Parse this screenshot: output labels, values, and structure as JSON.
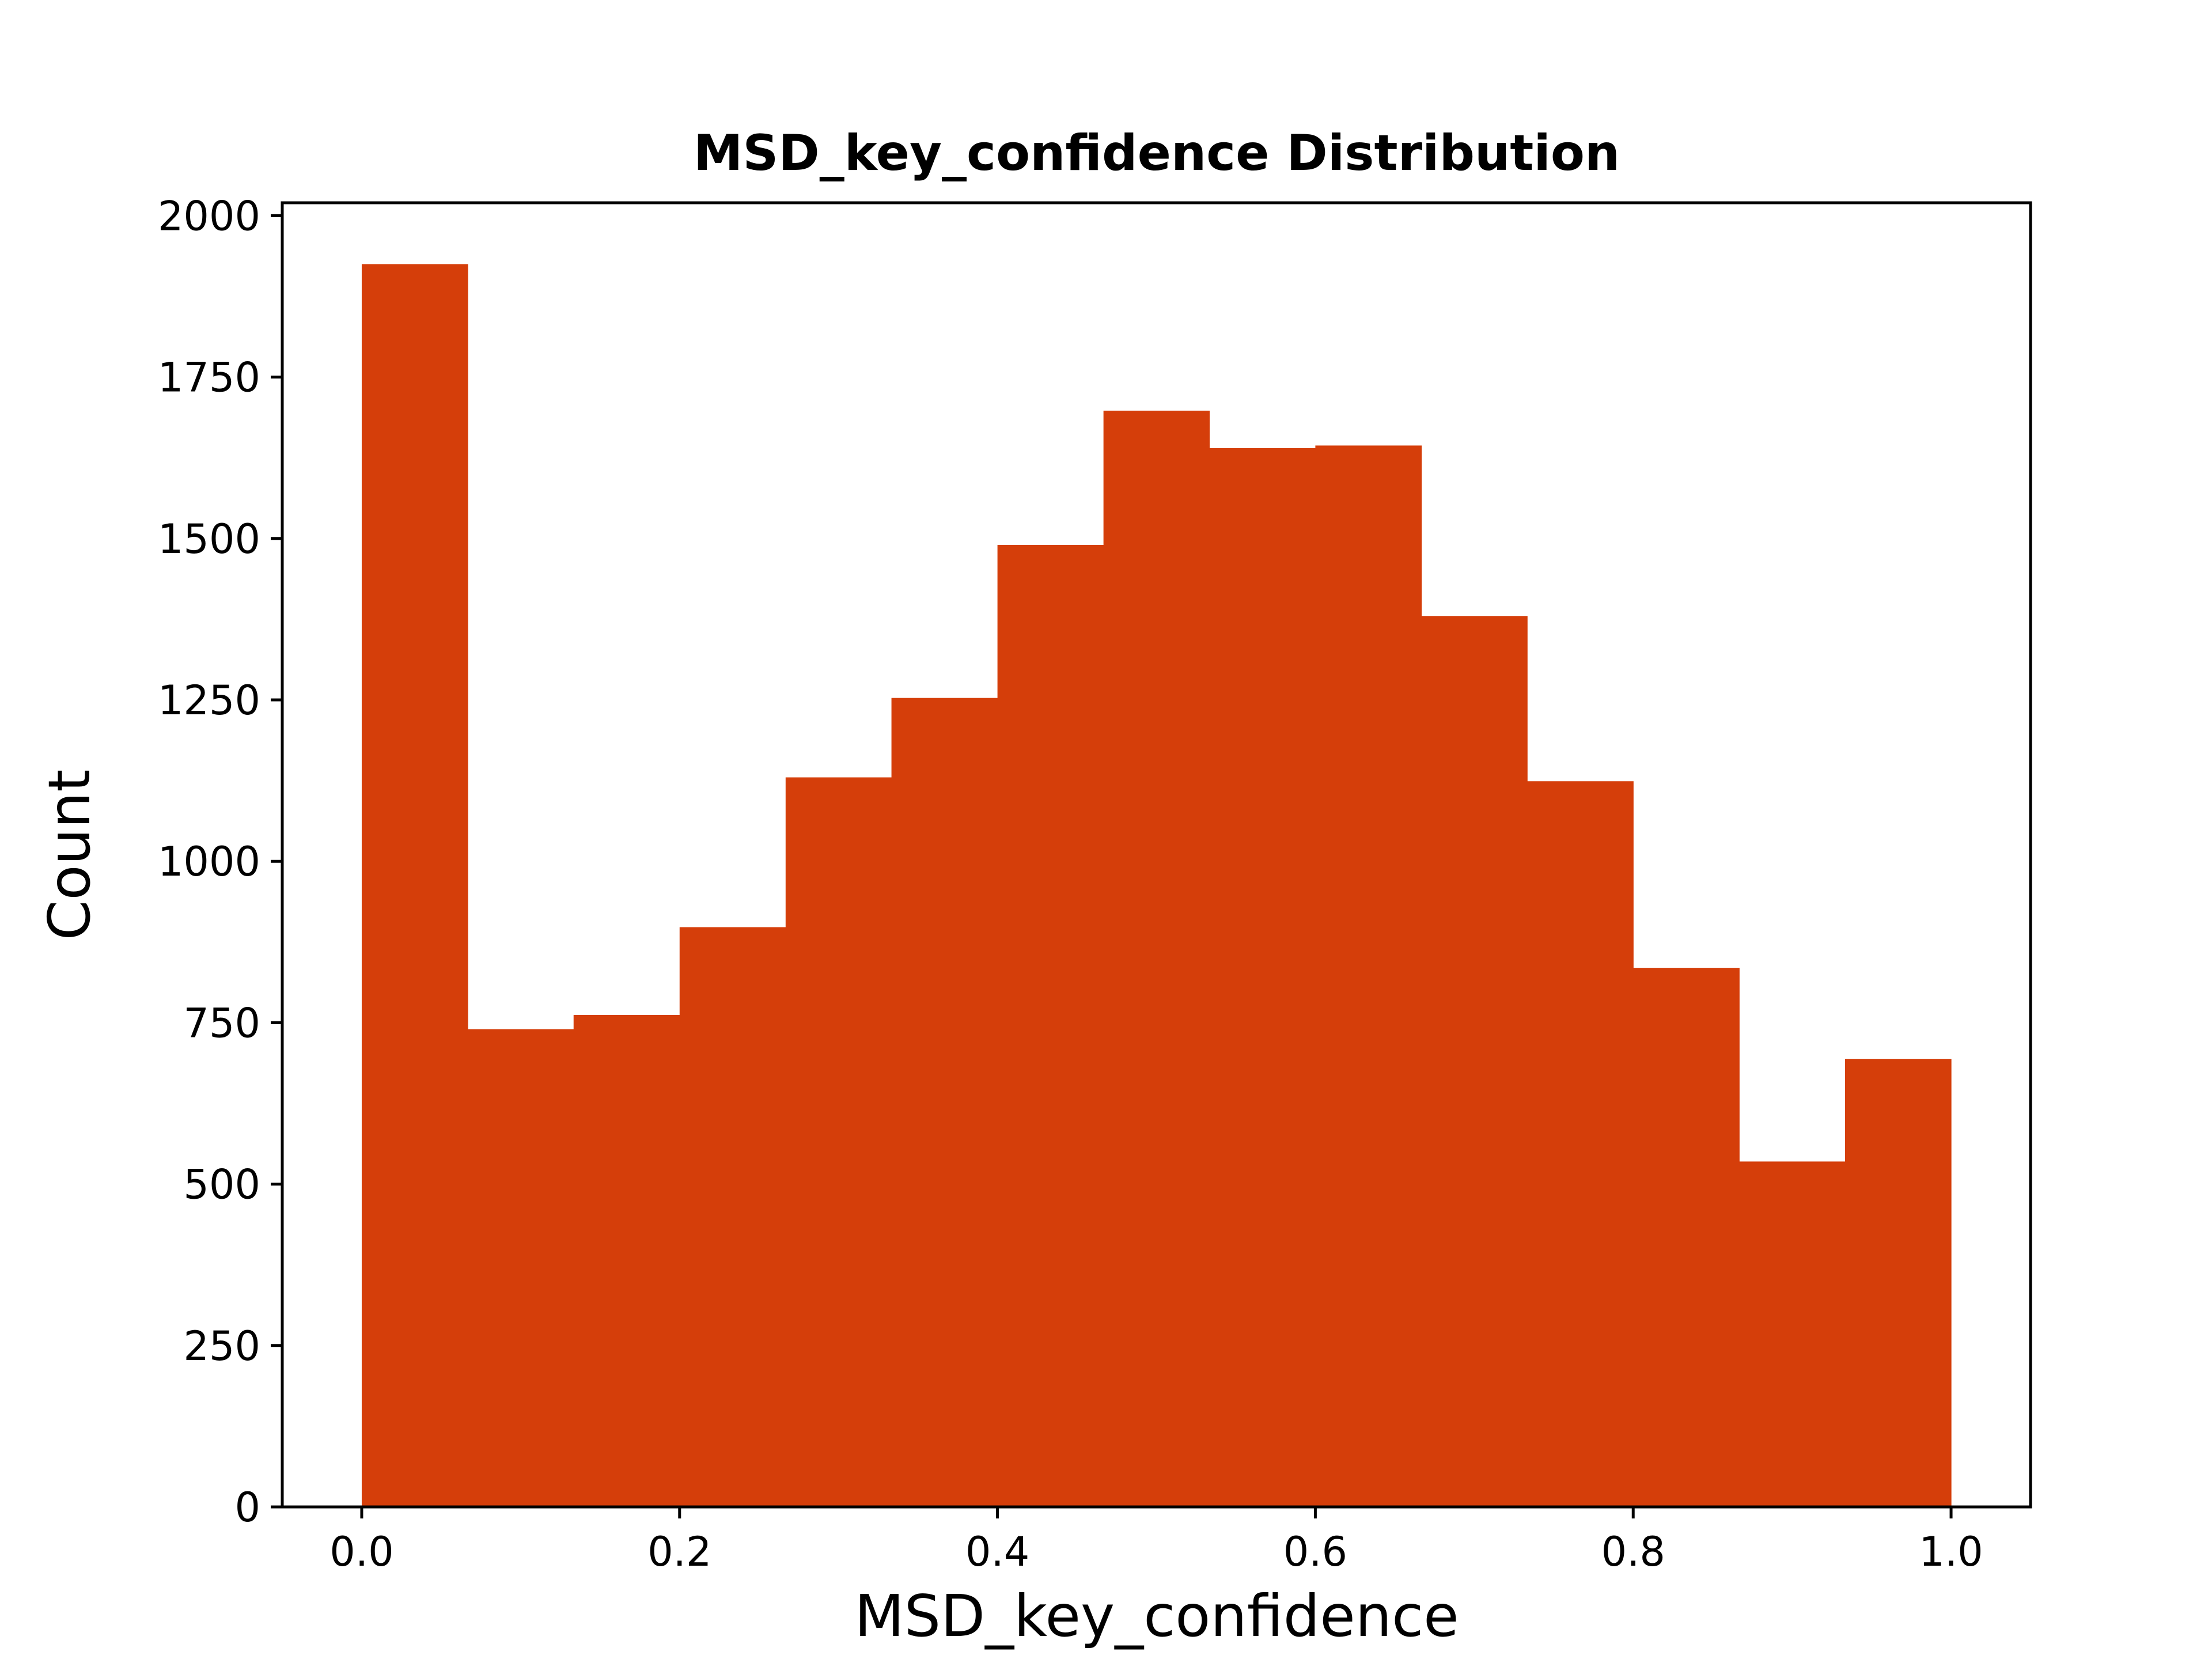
{
  "chart_data": {
    "type": "bar",
    "title": "MSD_key_confidence Distribution",
    "xlabel": "MSD_key_confidence",
    "ylabel": "Count",
    "bin_edges": [
      0.0,
      0.0667,
      0.1333,
      0.2,
      0.2667,
      0.3333,
      0.4,
      0.4667,
      0.5333,
      0.6,
      0.6667,
      0.7333,
      0.8,
      0.8667,
      0.9333,
      1.0
    ],
    "values": [
      1925,
      740,
      762,
      898,
      1130,
      1253,
      1490,
      1698,
      1640,
      1644,
      1380,
      1124,
      835,
      535,
      694
    ],
    "xlim": [
      -0.05,
      1.05
    ],
    "ylim": [
      0,
      2020
    ],
    "xticks": [
      0.0,
      0.2,
      0.4,
      0.6,
      0.8,
      1.0
    ],
    "xtick_labels": [
      "0.0",
      "0.2",
      "0.4",
      "0.6",
      "0.8",
      "1.0"
    ],
    "yticks": [
      0,
      250,
      500,
      750,
      1000,
      1250,
      1500,
      1750,
      2000
    ],
    "ytick_labels": [
      "0",
      "250",
      "500",
      "750",
      "1000",
      "1250",
      "1500",
      "1750",
      "2000"
    ],
    "bar_color": "#d53e0a",
    "grid": false,
    "legend": "none"
  }
}
